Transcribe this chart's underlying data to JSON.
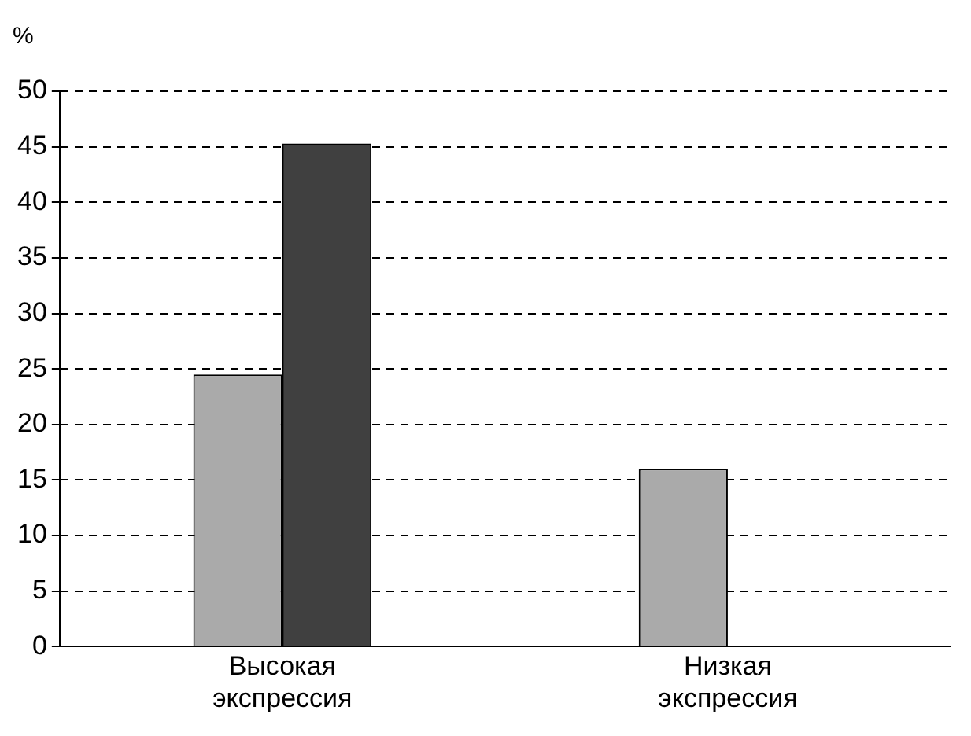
{
  "chart_data": {
    "type": "bar",
    "ylabel": "%",
    "categories": [
      "Высокая экспрессия",
      "Низкая экспрессия"
    ],
    "series": [
      {
        "color": "#aaaaaa",
        "values": [
          24.5,
          16
        ]
      },
      {
        "color": "#404040",
        "values": [
          45.3,
          null
        ]
      }
    ],
    "ylim": [
      0,
      50
    ],
    "yticks": [
      0,
      5,
      10,
      15,
      20,
      25,
      30,
      35,
      40,
      45,
      50
    ],
    "grid": "y",
    "legend": false
  }
}
